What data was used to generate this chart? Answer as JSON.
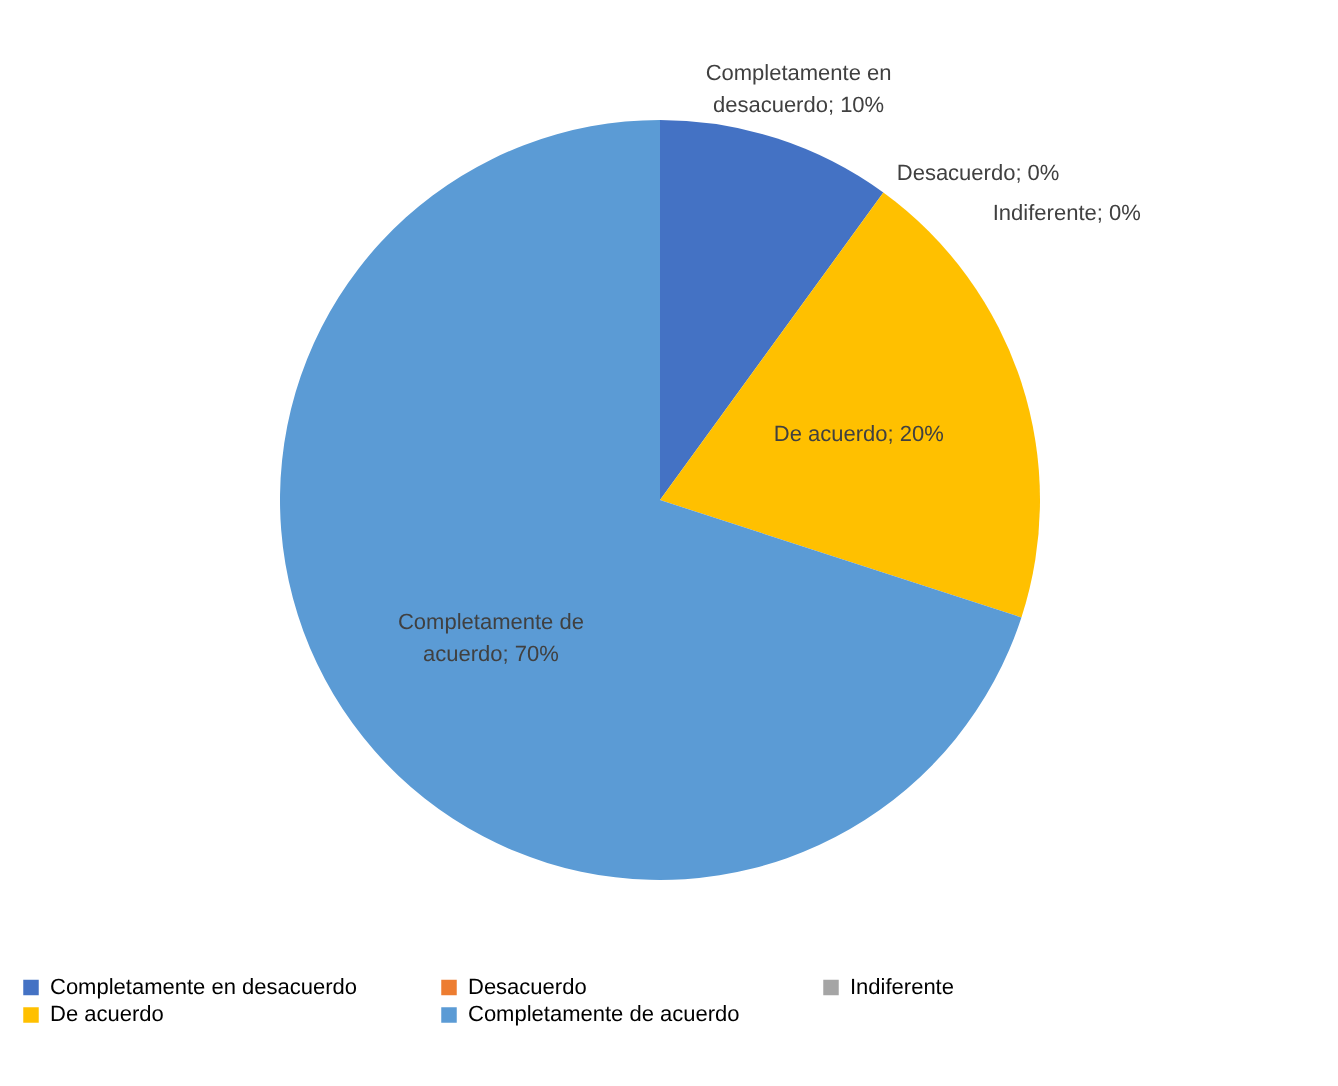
{
  "chart_data": {
    "type": "pie",
    "categories": [
      "Completamente en desacuerdo",
      "Desacuerdo",
      "Indiferente",
      "De acuerdo",
      "Completamente de acuerdo"
    ],
    "values": [
      10,
      0,
      0,
      20,
      70
    ],
    "colors": [
      "#4472c4",
      "#ed7d31",
      "#a5a5a5",
      "#ffc000",
      "#5b9bd5"
    ],
    "value_labels": [
      "Completamente en desacuerdo; 10%",
      "Desacuerdo; 0%",
      "Indiferente; 0%",
      "De acuerdo; 20%",
      "Completamente de acuerdo; 70%"
    ],
    "legend": "bottom"
  }
}
